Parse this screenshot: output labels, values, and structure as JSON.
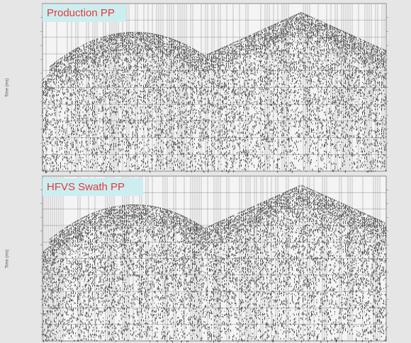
{
  "panels": [
    {
      "title": "Production PP",
      "y_axis_label": "Time (ms)"
    },
    {
      "title": "HFVS Swath PP",
      "y_axis_label": "Time (ms)"
    }
  ]
}
